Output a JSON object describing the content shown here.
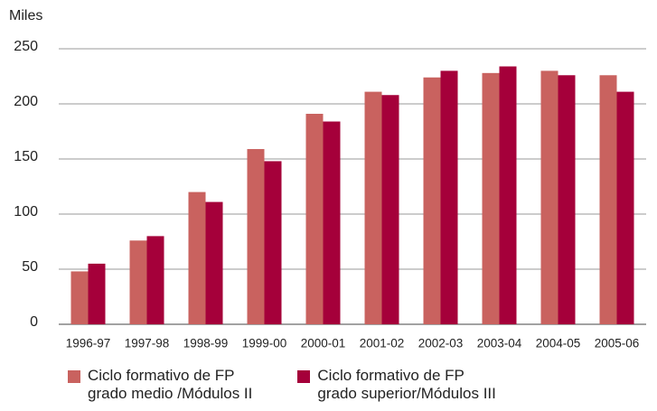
{
  "chart_data": {
    "type": "bar",
    "y_label": "Miles",
    "categories": [
      "1996-97",
      "1997-98",
      "1998-99",
      "1999-00",
      "2000-01",
      "2001-02",
      "2002-03",
      "2003-04",
      "2004-05",
      "2005-06"
    ],
    "series": [
      {
        "name": "Ciclo formativo de FP\ngrado medio /Módulos II",
        "color": "#c9625f",
        "values": [
          48,
          76,
          120,
          159,
          191,
          211,
          224,
          228,
          230,
          226
        ]
      },
      {
        "name": "Ciclo formativo de FP\ngrado superior/Módulos III",
        "color": "#a5003a",
        "values": [
          55,
          80,
          111,
          148,
          184,
          208,
          230,
          234,
          226,
          211
        ]
      }
    ],
    "ylim": [
      0,
      250
    ],
    "yticks": [
      0,
      50,
      100,
      150,
      200,
      250
    ],
    "grid": true
  }
}
